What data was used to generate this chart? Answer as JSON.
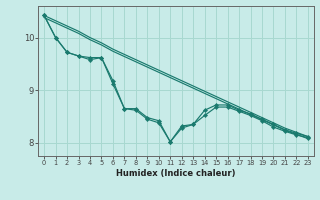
{
  "xlabel": "Humidex (Indice chaleur)",
  "bg_color": "#c8ebe8",
  "grid_color": "#a8d8d0",
  "line_color": "#1a7a6e",
  "xlim": [
    -0.5,
    23.5
  ],
  "ylim": [
    7.75,
    10.6
  ],
  "yticks": [
    8,
    9,
    10
  ],
  "xticks": [
    0,
    1,
    2,
    3,
    4,
    5,
    6,
    7,
    8,
    9,
    10,
    11,
    12,
    13,
    14,
    15,
    16,
    17,
    18,
    19,
    20,
    21,
    22,
    23
  ],
  "line1_x": [
    0,
    1,
    2,
    3,
    4,
    5,
    6,
    7,
    8,
    9,
    10,
    11,
    12,
    13,
    14,
    15,
    16,
    17,
    18,
    19,
    20,
    21,
    22,
    23
  ],
  "line1_y": [
    10.42,
    10.32,
    10.22,
    10.12,
    10.0,
    9.9,
    9.78,
    9.68,
    9.58,
    9.48,
    9.38,
    9.28,
    9.18,
    9.08,
    8.98,
    8.88,
    8.78,
    8.68,
    8.58,
    8.48,
    8.38,
    8.28,
    8.2,
    8.12
  ],
  "line2_x": [
    0,
    1,
    2,
    3,
    4,
    5,
    6,
    7,
    8,
    9,
    10,
    11,
    12,
    13,
    14,
    15,
    16,
    17,
    18,
    19,
    20,
    21,
    22,
    23
  ],
  "line2_y": [
    10.38,
    10.28,
    10.18,
    10.08,
    9.96,
    9.86,
    9.74,
    9.64,
    9.54,
    9.44,
    9.34,
    9.24,
    9.14,
    9.04,
    8.94,
    8.84,
    8.74,
    8.64,
    8.54,
    8.44,
    8.34,
    8.24,
    8.16,
    8.08
  ],
  "line3_x": [
    0,
    1,
    2,
    3,
    4,
    5,
    6,
    7,
    8,
    9,
    10,
    11,
    12,
    13,
    14,
    15,
    16,
    17,
    18,
    19,
    20,
    21,
    22,
    23
  ],
  "line3_y": [
    10.42,
    10.0,
    9.72,
    9.65,
    9.62,
    9.62,
    9.18,
    8.65,
    8.65,
    8.48,
    8.42,
    8.02,
    8.32,
    8.35,
    8.62,
    8.72,
    8.72,
    8.62,
    8.55,
    8.45,
    8.35,
    8.25,
    8.18,
    8.12
  ],
  "line4_x": [
    0,
    1,
    2,
    3,
    4,
    5,
    6,
    7,
    8,
    9,
    10,
    11,
    12,
    13,
    14,
    15,
    16,
    17,
    18,
    19,
    20,
    21,
    22,
    23
  ],
  "line4_y": [
    10.42,
    10.0,
    9.72,
    9.65,
    9.58,
    9.62,
    9.12,
    8.65,
    8.62,
    8.45,
    8.38,
    8.02,
    8.28,
    8.35,
    8.52,
    8.68,
    8.68,
    8.6,
    8.52,
    8.42,
    8.3,
    8.22,
    8.15,
    8.1
  ]
}
